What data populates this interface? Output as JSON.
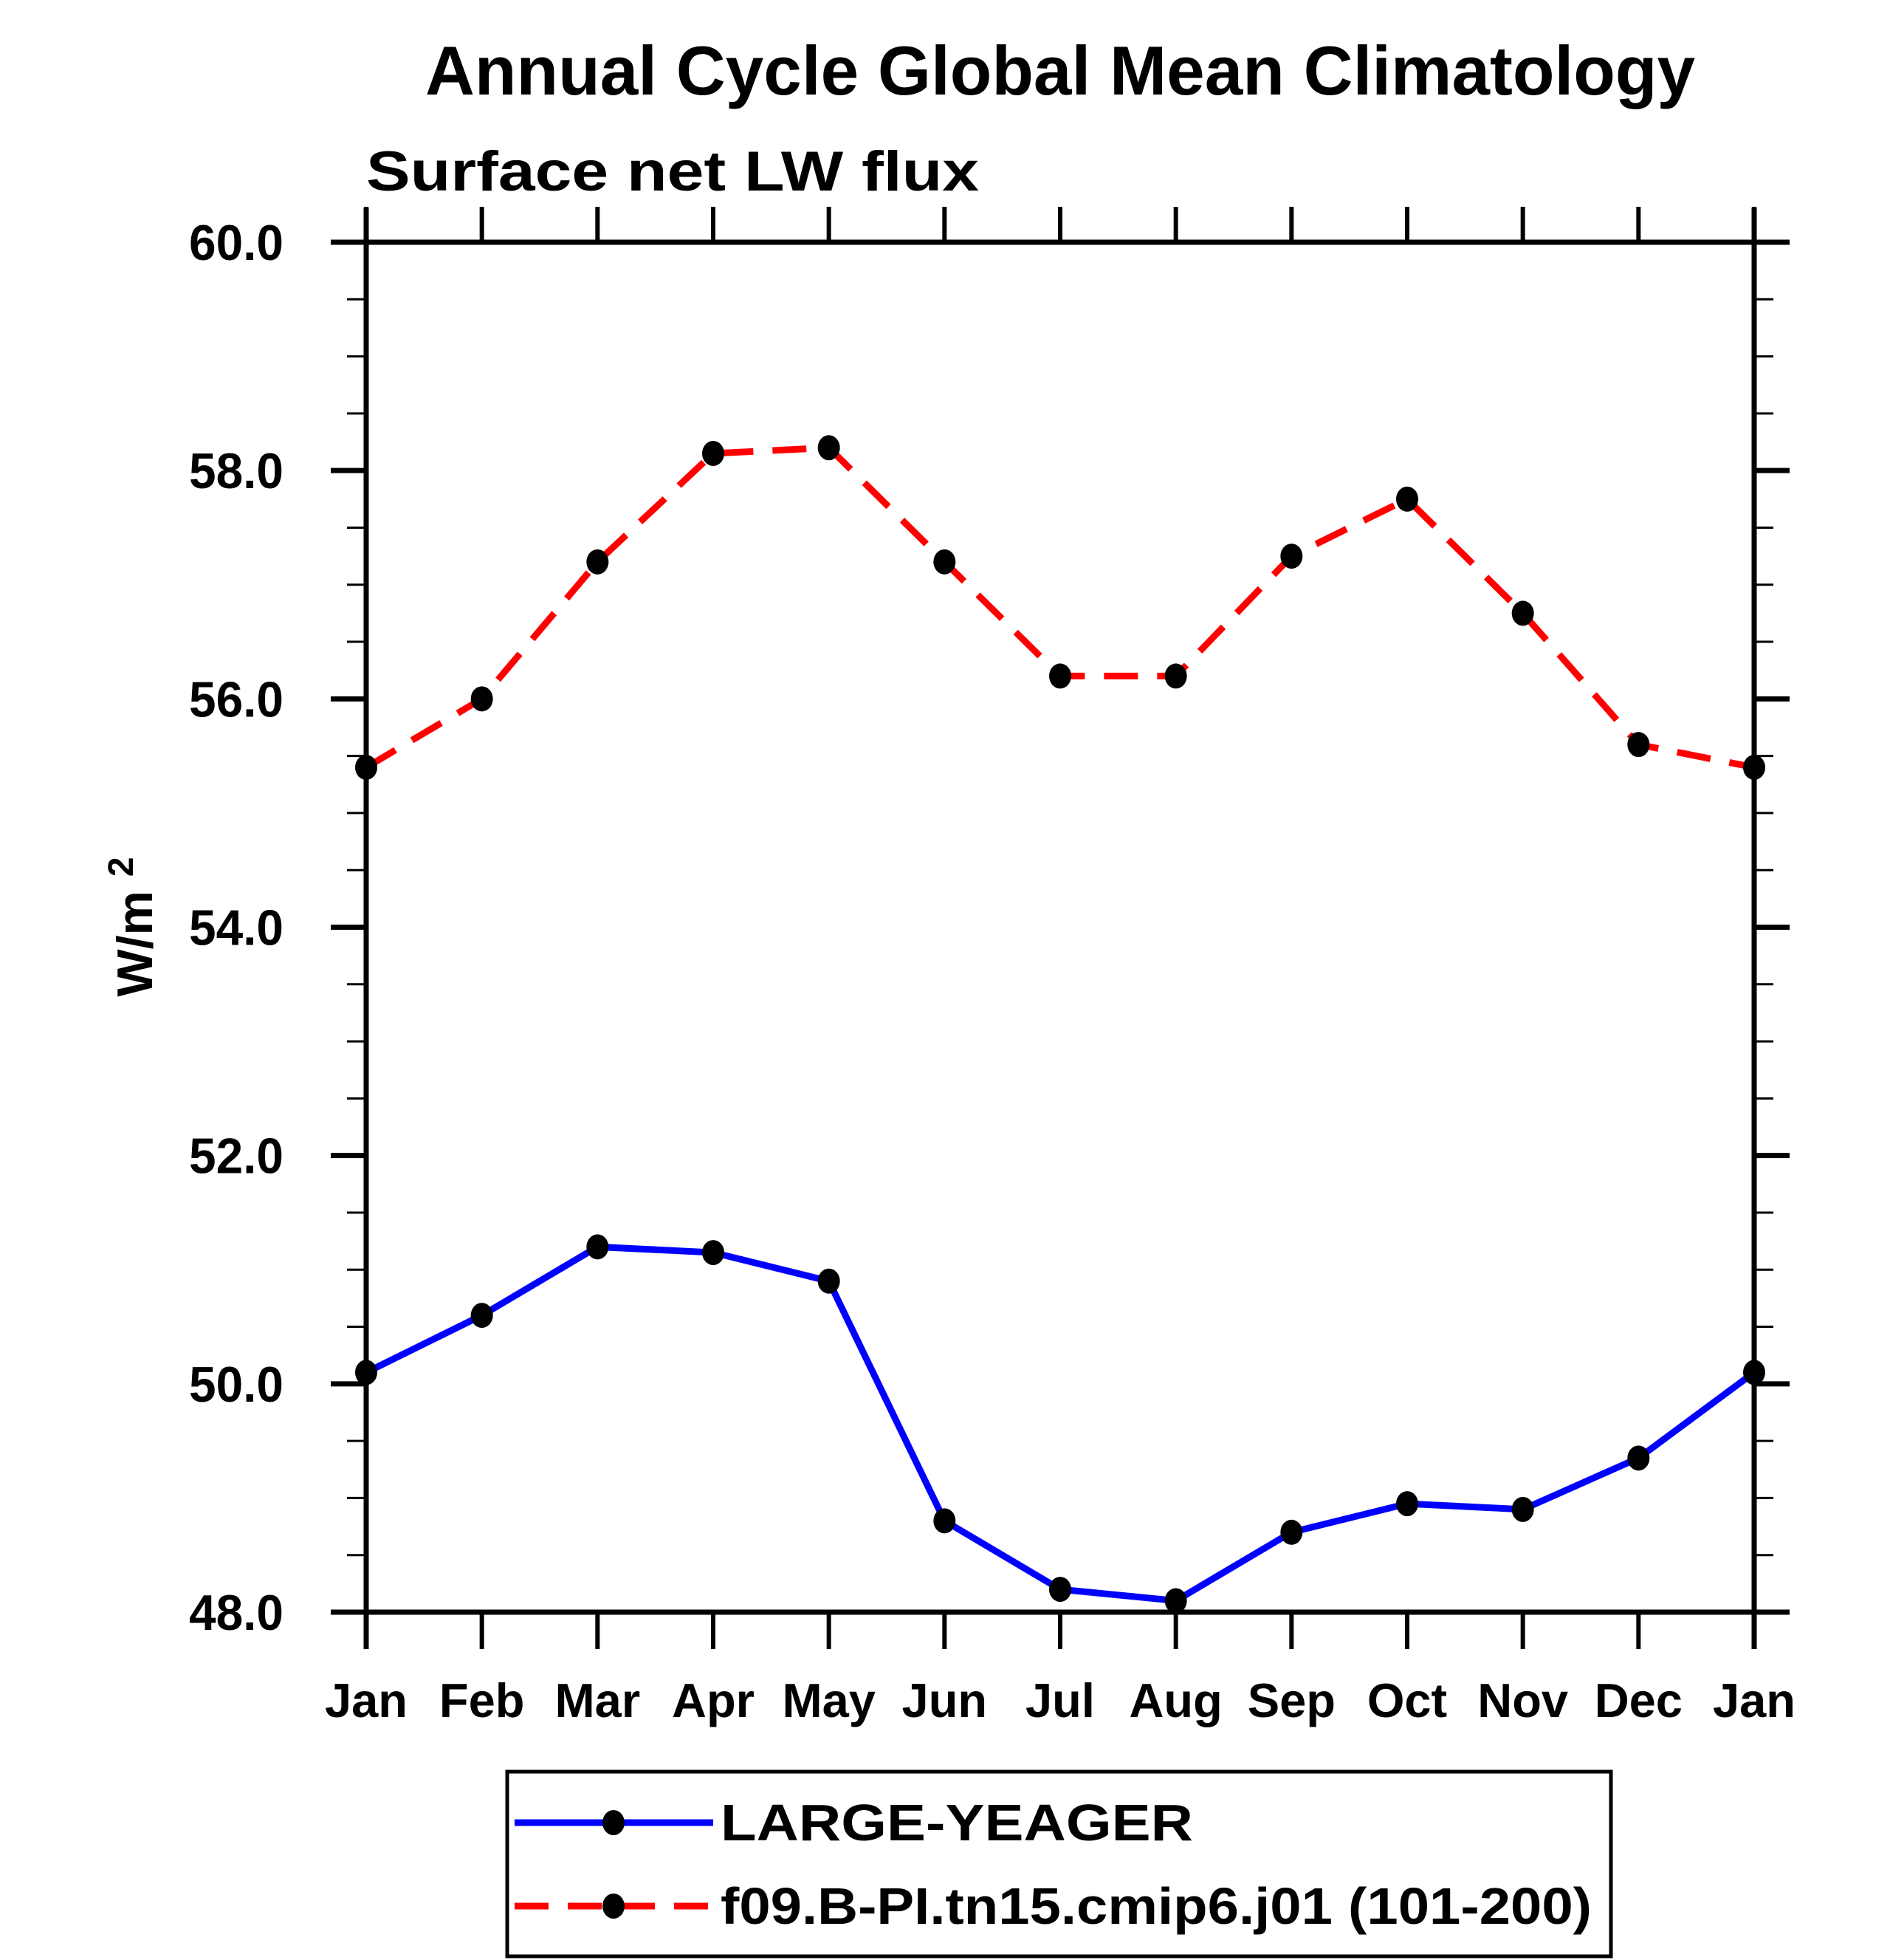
{
  "chart_data": {
    "type": "line",
    "title": "Annual Cycle Global Mean Climatology",
    "subtitle": "Surface net LW flux",
    "ylabel": {
      "base": "W/m",
      "superscript": "2"
    },
    "categories": [
      "Jan",
      "Feb",
      "Mar",
      "Apr",
      "May",
      "Jun",
      "Jul",
      "Aug",
      "Sep",
      "Oct",
      "Nov",
      "Dec",
      "Jan"
    ],
    "y_axis": {
      "min": 48.0,
      "max": 60.0,
      "major_tick_step": 2.0,
      "minor_tick_step": 0.5,
      "tick_labels": [
        "48.0",
        "50.0",
        "52.0",
        "54.0",
        "56.0",
        "58.0",
        "60.0"
      ]
    },
    "grid": "off",
    "legend": {
      "position": "bottom"
    },
    "colors": {
      "axis": "#000000",
      "marker": "#000000",
      "background": "#ffffff"
    },
    "series": [
      {
        "name": "LARGE-YEAGER",
        "color": "#0000ff",
        "line_style": "solid",
        "marker": "filled-circle",
        "marker_color": "#000000",
        "values": [
          50.1,
          50.6,
          51.2,
          51.15,
          50.9,
          48.8,
          48.2,
          48.1,
          48.7,
          48.95,
          48.9,
          49.35,
          50.1
        ]
      },
      {
        "name": "f09.B-PI.tn15.cmip6.j01 (101-200)",
        "color": "#ff0000",
        "line_style": "dashed",
        "marker": "filled-circle",
        "marker_color": "#000000",
        "values": [
          55.4,
          56.0,
          57.2,
          58.15,
          58.2,
          57.2,
          56.2,
          56.2,
          57.25,
          57.75,
          56.75,
          55.6,
          55.4
        ]
      }
    ]
  }
}
